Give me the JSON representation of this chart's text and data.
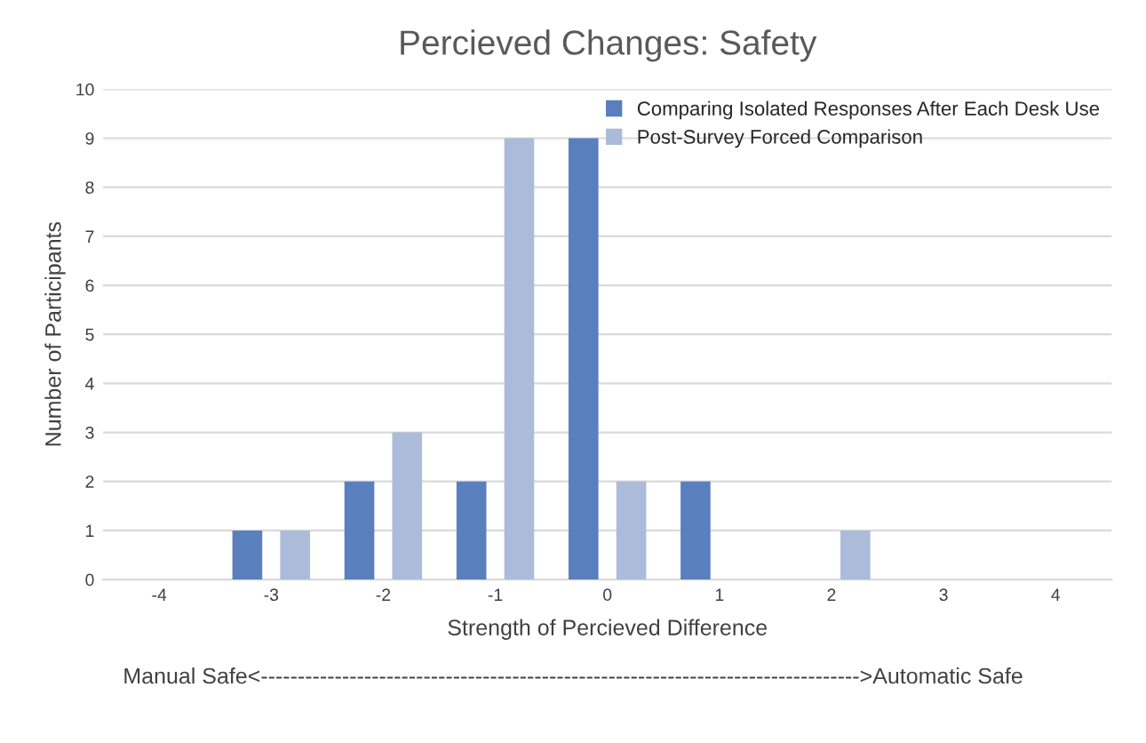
{
  "chart_data": {
    "type": "bar",
    "title": "Percieved Changes: Safety",
    "xlabel": "Strength of Percieved Difference",
    "ylabel": "Number of Participants",
    "categories": [
      "-4",
      "-3",
      "-2",
      "-1",
      "0",
      "1",
      "2",
      "3",
      "4"
    ],
    "series": [
      {
        "name": "Comparing Isolated Responses After Each Desk Use",
        "color": "#5a7fbd",
        "values": [
          0,
          1,
          2,
          2,
          9,
          2,
          0,
          0,
          0
        ]
      },
      {
        "name": "Post-Survey Forced Comparison",
        "color": "#abbbd9",
        "values": [
          0,
          1,
          3,
          9,
          2,
          0,
          1,
          0,
          0
        ]
      }
    ],
    "ylim": [
      0,
      10
    ],
    "yticks": [
      0,
      1,
      2,
      3,
      4,
      5,
      6,
      7,
      8,
      9,
      10
    ],
    "grid": "y",
    "legend": "top right",
    "annotations": [
      "Manual Safe<--------------------------------------------------------------------------------->Automatic Safe"
    ]
  }
}
